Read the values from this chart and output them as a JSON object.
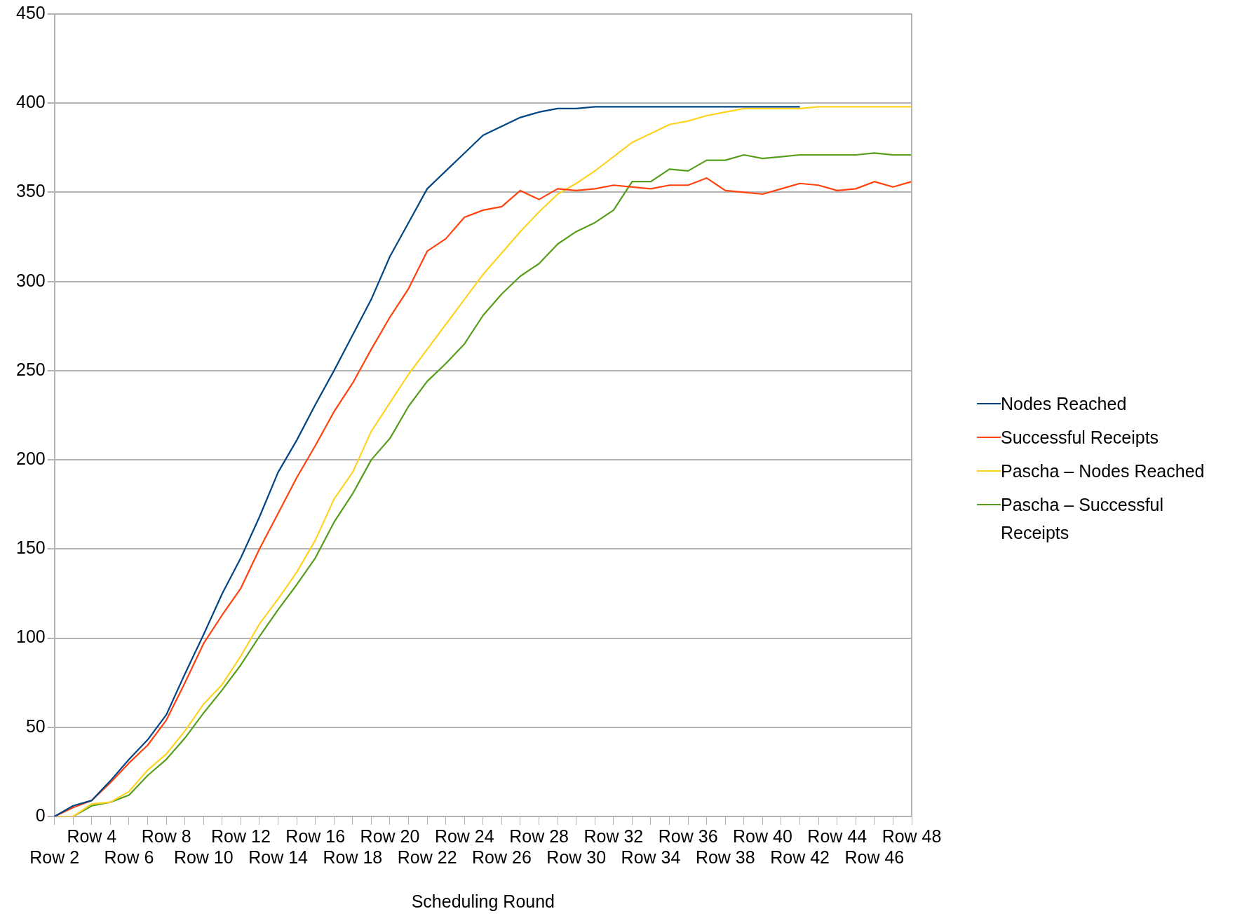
{
  "chart_data": {
    "type": "line",
    "xlabel": "Scheduling Round",
    "categories": [
      "Row 2",
      null,
      "Row 4",
      null,
      "Row 6",
      null,
      "Row 8",
      null,
      "Row 10",
      null,
      "Row 12",
      null,
      "Row 14",
      null,
      "Row 16",
      null,
      "Row 18",
      null,
      "Row 20",
      null,
      "Row 22",
      null,
      "Row 24",
      null,
      "Row 26",
      null,
      "Row 28",
      null,
      "Row 30",
      null,
      "Row 32",
      null,
      "Row 34",
      null,
      "Row 36",
      null,
      "Row 38",
      null,
      "Row 40",
      null,
      "Row 42",
      null,
      "Row 44",
      null,
      "Row 46",
      null,
      "Row 48"
    ],
    "series": [
      {
        "name": "Nodes Reached",
        "color": "#004586",
        "values": [
          0,
          6,
          9,
          20,
          32,
          43,
          57,
          80,
          102,
          125,
          145,
          168,
          193,
          211,
          231,
          250,
          270,
          290,
          314,
          333,
          352,
          362,
          372,
          382,
          387,
          392,
          395,
          397,
          397,
          398,
          398,
          398,
          398,
          398,
          398,
          398,
          398,
          398,
          398,
          398,
          398,
          null,
          null,
          null,
          null,
          null,
          null
        ]
      },
      {
        "name": "Successful Receipts",
        "color": "#ff420e",
        "values": [
          0,
          5,
          9,
          19,
          30,
          40,
          54,
          75,
          97,
          113,
          128,
          150,
          170,
          190,
          208,
          227,
          243,
          262,
          280,
          296,
          317,
          324,
          336,
          340,
          342,
          351,
          346,
          352,
          351,
          352,
          354,
          353,
          352,
          354,
          354,
          358,
          351,
          350,
          349,
          352,
          355,
          354,
          351,
          352,
          356,
          353,
          356
        ]
      },
      {
        "name": "Pascha – Nodes Reached",
        "color": "#ffd320",
        "values": [
          0,
          0,
          7,
          8,
          14,
          26,
          35,
          48,
          63,
          74,
          90,
          108,
          122,
          137,
          155,
          178,
          193,
          216,
          232,
          248,
          262,
          276,
          290,
          304,
          316,
          328,
          339,
          349,
          355,
          362,
          370,
          378,
          383,
          388,
          390,
          393,
          395,
          397,
          397,
          397,
          397,
          398,
          398,
          398,
          398,
          398,
          398
        ]
      },
      {
        "name": "Pascha – Successful Receipts",
        "color": "#579d1c",
        "values": [
          0,
          0,
          6,
          8,
          12,
          23,
          32,
          44,
          58,
          71,
          85,
          101,
          116,
          130,
          145,
          165,
          181,
          200,
          212,
          230,
          244,
          254,
          265,
          281,
          293,
          303,
          310,
          321,
          328,
          333,
          340,
          356,
          356,
          363,
          362,
          368,
          368,
          371,
          369,
          370,
          371,
          371,
          371,
          371,
          372,
          371,
          371
        ]
      }
    ],
    "ylim": [
      0,
      450
    ],
    "yticks": [
      0,
      50,
      100,
      150,
      200,
      250,
      300,
      350,
      400,
      450
    ],
    "grid": "y",
    "legend": "right",
    "marker": "none",
    "line_style": "solid"
  }
}
